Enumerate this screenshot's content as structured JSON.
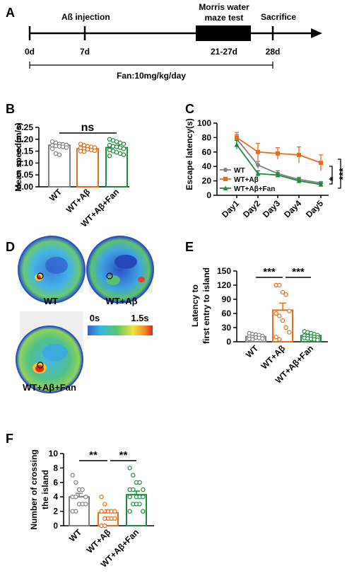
{
  "panels": {
    "A": "A",
    "B": "B",
    "C": "C",
    "D": "D",
    "E": "E",
    "F": "F"
  },
  "timeline": {
    "event_abeta": "Aß injection",
    "event_mwm_line1": "Morris water",
    "event_mwm_line2": "maze test",
    "event_sacrifice": "Sacrifice",
    "ticks": [
      "0d",
      "7d",
      "21-27d",
      "28d"
    ],
    "treatment": "Fan:10mg/kg/day"
  },
  "groups": [
    "WT",
    "WT+Aβ",
    "WT+Aβ+Fan"
  ],
  "colors": {
    "WT": "#808080",
    "WT+Aβ": "#ec6a1c",
    "WT+Aβ+Fan": "#1e8a3c"
  },
  "heatmaps": {
    "scale_min": "0s",
    "scale_max": "1.5s",
    "labels": [
      "WT",
      "WT+Aβ",
      "WT+Aβ+Fan"
    ]
  },
  "chart_data": [
    {
      "panel": "B",
      "type": "bar",
      "ylabel": "Mean speed(m/s)",
      "ylim": [
        0,
        0.25
      ],
      "yticks": [
        "0.00",
        "0.05",
        "0.10",
        "0.15",
        "0.20",
        "0.25"
      ],
      "categories": [
        "WT",
        "WT+Aβ",
        "WT+Aβ+Fan"
      ],
      "values": [
        0.175,
        0.16,
        0.165
      ],
      "errors": [
        0.01,
        0.008,
        0.01
      ],
      "points": [
        [
          0.19,
          0.185,
          0.18,
          0.178,
          0.176,
          0.174,
          0.172,
          0.17,
          0.168,
          0.165,
          0.16,
          0.14,
          0.135
        ],
        [
          0.18,
          0.175,
          0.17,
          0.168,
          0.165,
          0.163,
          0.16,
          0.158,
          0.155,
          0.152,
          0.15,
          0.148
        ],
        [
          0.2,
          0.195,
          0.19,
          0.185,
          0.18,
          0.175,
          0.17,
          0.168,
          0.165,
          0.16,
          0.155,
          0.15,
          0.145,
          0.14,
          0.135,
          0.13
        ]
      ],
      "annotations": [
        "ns"
      ]
    },
    {
      "panel": "C",
      "type": "line",
      "ylabel": "Escape latency(s)",
      "ylim": [
        0,
        100
      ],
      "yticks": [
        "0",
        "20",
        "40",
        "60",
        "80",
        "100"
      ],
      "x": [
        "Day1",
        "Day2",
        "Day3",
        "Day4",
        "Day5"
      ],
      "series": [
        {
          "name": "WT",
          "values": [
            78,
            42,
            30,
            22,
            17
          ],
          "errors": [
            6,
            5,
            4,
            3,
            2
          ]
        },
        {
          "name": "WT+Aβ",
          "values": [
            80,
            60,
            58,
            56,
            45
          ],
          "errors": [
            7,
            12,
            8,
            11,
            11
          ]
        },
        {
          "name": "WT+Aβ+Fan",
          "values": [
            70,
            30,
            28,
            20,
            15
          ],
          "errors": [
            6,
            4,
            3,
            3,
            2
          ]
        }
      ],
      "annotations": [
        "*",
        "***"
      ]
    },
    {
      "panel": "E",
      "type": "bar",
      "ylabel_line1": "Latency to",
      "ylabel_line2": "first entry to island",
      "ylim": [
        0,
        150
      ],
      "yticks": [
        "0",
        "30",
        "60",
        "90",
        "120",
        "150"
      ],
      "categories": [
        "WT",
        "WT+Aβ",
        "WT+Aβ+Fan"
      ],
      "values": [
        11,
        67,
        13
      ],
      "errors": [
        2,
        15,
        2
      ],
      "points": [
        [
          18,
          16,
          15,
          14,
          12,
          11,
          10,
          9,
          8,
          7,
          6,
          5
        ],
        [
          120,
          120,
          105,
          100,
          65,
          60,
          55,
          45,
          30,
          20,
          10,
          5
        ],
        [
          22,
          20,
          18,
          16,
          14,
          13,
          12,
          11,
          10,
          9,
          8,
          7,
          6,
          5,
          4
        ]
      ],
      "annotations": [
        "***",
        "***"
      ]
    },
    {
      "panel": "F",
      "type": "bar",
      "ylabel_line1": "Number of crossing",
      "ylabel_line2": "the island",
      "ylim": [
        0,
        10
      ],
      "yticks": [
        "0",
        "2",
        "4",
        "6",
        "8",
        "10"
      ],
      "categories": [
        "WT",
        "WT+Aβ",
        "WT+Aβ+Fan"
      ],
      "values": [
        4,
        1.8,
        4.3
      ],
      "errors": [
        0.5,
        0.4,
        0.5
      ],
      "points": [
        [
          7,
          6,
          5,
          5,
          4,
          4,
          4,
          3,
          3,
          3,
          2,
          2
        ],
        [
          4,
          3,
          2,
          2,
          2,
          2,
          1,
          1,
          1,
          1,
          0,
          0
        ],
        [
          8,
          7,
          6,
          6,
          5,
          5,
          5,
          4,
          4,
          4,
          4,
          3,
          3,
          3,
          2,
          2
        ]
      ],
      "annotations": [
        "**",
        "**"
      ]
    }
  ]
}
